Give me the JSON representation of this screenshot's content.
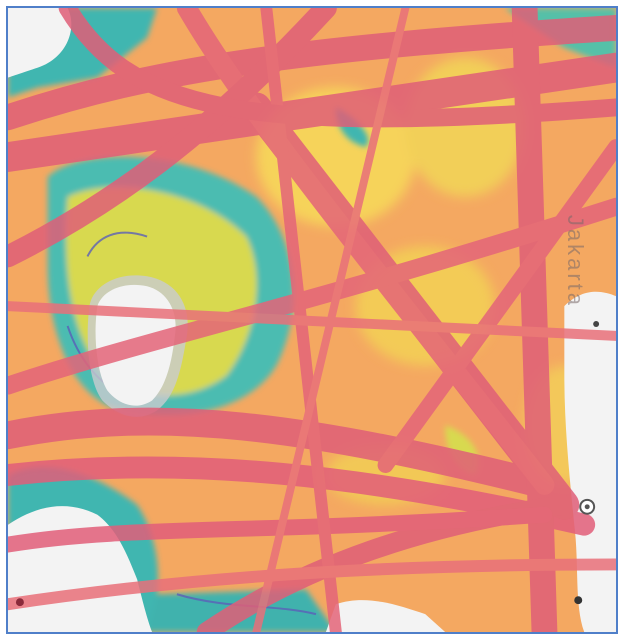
{
  "map": {
    "city_label": "Jakarta",
    "layer": "density-heatmap",
    "colors": {
      "frame_border": "#4f7fc9",
      "land": "#f3f3f3",
      "land_shadow": "#c9cbcf",
      "low_density": "#3fb6b0",
      "medium_low": "#d8d94f",
      "medium": "#f6c24f",
      "high": "#f08a4b",
      "very_high": "#e05f78",
      "coast_outline": "#5b5fb8"
    }
  }
}
